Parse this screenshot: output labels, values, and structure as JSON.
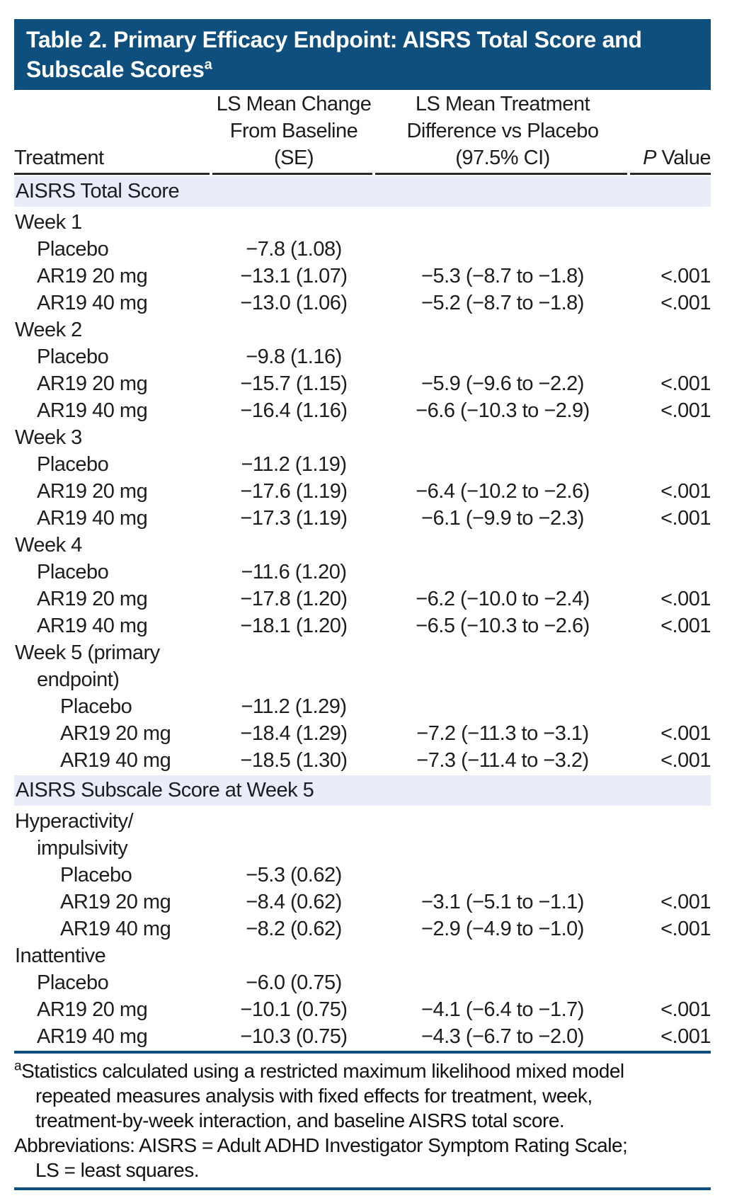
{
  "colors": {
    "title_band": "#0f4f7d",
    "section_band": "#e8edf9",
    "header_rule": "#2a2a2a",
    "blue_rule": "#0f4f7d"
  },
  "table": {
    "title": {
      "line1": "Table 2. Primary Efficacy Endpoint: AISRS Total Score and",
      "line2": "Subscale Scores",
      "superscript": "a"
    },
    "header": {
      "col1": "Treatment",
      "col2_line1": "LS Mean Change",
      "col2_line2": "From Baseline (SE)",
      "col3_line1": "LS Mean Treatment",
      "col3_line2": "Difference vs Placebo",
      "col3_line3": "(97.5% CI)",
      "col4_italic": "P",
      "col4_rest": " Value"
    },
    "rows": [
      {
        "type": "band",
        "label": "AISRS Total Score"
      },
      {
        "type": "group",
        "label": "Week 1"
      },
      {
        "type": "data",
        "indent": 1,
        "label": "Placebo",
        "change": "−7.8 (1.08)",
        "diff": "",
        "p": ""
      },
      {
        "type": "data",
        "indent": 1,
        "label": "AR19 20 mg",
        "change": "−13.1 (1.07)",
        "diff": "−5.3 (−8.7 to −1.8)",
        "p": "<.001"
      },
      {
        "type": "data",
        "indent": 1,
        "label": "AR19 40 mg",
        "change": "−13.0 (1.06)",
        "diff": "−5.2 (−8.7 to −1.8)",
        "p": "<.001"
      },
      {
        "type": "group",
        "label": "Week 2"
      },
      {
        "type": "data",
        "indent": 1,
        "label": "Placebo",
        "change": "−9.8 (1.16)",
        "diff": "",
        "p": ""
      },
      {
        "type": "data",
        "indent": 1,
        "label": "AR19 20 mg",
        "change": "−15.7 (1.15)",
        "diff": "−5.9 (−9.6 to −2.2)",
        "p": "<.001"
      },
      {
        "type": "data",
        "indent": 1,
        "label": "AR19 40 mg",
        "change": "−16.4 (1.16)",
        "diff": "−6.6 (−10.3 to −2.9)",
        "p": "<.001"
      },
      {
        "type": "group",
        "label": "Week 3"
      },
      {
        "type": "data",
        "indent": 1,
        "label": "Placebo",
        "change": "−11.2 (1.19)",
        "diff": "",
        "p": ""
      },
      {
        "type": "data",
        "indent": 1,
        "label": "AR19 20 mg",
        "change": "−17.6 (1.19)",
        "diff": "−6.4 (−10.2 to −2.6)",
        "p": "<.001"
      },
      {
        "type": "data",
        "indent": 1,
        "label": "AR19 40 mg",
        "change": "−17.3 (1.19)",
        "diff": "−6.1 (−9.9 to −2.3)",
        "p": "<.001"
      },
      {
        "type": "group",
        "label": "Week 4"
      },
      {
        "type": "data",
        "indent": 1,
        "label": "Placebo",
        "change": "−11.6 (1.20)",
        "diff": "",
        "p": ""
      },
      {
        "type": "data",
        "indent": 1,
        "label": "AR19 20 mg",
        "change": "−17.8 (1.20)",
        "diff": "−6.2 (−10.0 to −2.4)",
        "p": "<.001"
      },
      {
        "type": "data",
        "indent": 1,
        "label": "AR19 40 mg",
        "change": "−18.1 (1.20)",
        "diff": "−6.5 (−10.3 to −2.6)",
        "p": "<.001"
      },
      {
        "type": "group2",
        "label_line1": "Week 5 (primary",
        "label_line2": "endpoint)"
      },
      {
        "type": "data",
        "indent": 2,
        "label": "Placebo",
        "change": "−11.2 (1.29)",
        "diff": "",
        "p": ""
      },
      {
        "type": "data",
        "indent": 2,
        "label": "AR19 20 mg",
        "change": "−18.4 (1.29)",
        "diff": "−7.2 (−11.3 to −3.1)",
        "p": "<.001"
      },
      {
        "type": "data",
        "indent": 2,
        "label": "AR19 40 mg",
        "change": "−18.5 (1.30)",
        "diff": "−7.3 (−11.4 to −3.2)",
        "p": "<.001"
      },
      {
        "type": "band",
        "label": "AISRS Subscale Score at Week 5"
      },
      {
        "type": "group2",
        "label_line1": "Hyperactivity/",
        "label_line2": "impulsivity"
      },
      {
        "type": "data",
        "indent": 2,
        "label": "Placebo",
        "change": "−5.3 (0.62)",
        "diff": "",
        "p": ""
      },
      {
        "type": "data",
        "indent": 2,
        "label": "AR19 20 mg",
        "change": "−8.4 (0.62)",
        "diff": "−3.1 (−5.1 to −1.1)",
        "p": "<.001"
      },
      {
        "type": "data",
        "indent": 2,
        "label": "AR19 40 mg",
        "change": "−8.2 (0.62)",
        "diff": "−2.9 (−4.9 to −1.0)",
        "p": "<.001"
      },
      {
        "type": "group",
        "label": "Inattentive"
      },
      {
        "type": "data",
        "indent": 1,
        "label": "Placebo",
        "change": "−6.0 (0.75)",
        "diff": "",
        "p": ""
      },
      {
        "type": "data",
        "indent": 1,
        "label": "AR19 20 mg",
        "change": "−10.1 (0.75)",
        "diff": "−4.1 (−6.4 to −1.7)",
        "p": "<.001"
      },
      {
        "type": "data",
        "indent": 1,
        "label": "AR19 40 mg",
        "change": "−10.3 (0.75)",
        "diff": "−4.3 (−6.7 to −2.0)",
        "p": "<.001"
      }
    ],
    "footnotes": {
      "fn1_sup": "a",
      "fn1_lines": [
        "Statistics calculated using a restricted maximum likelihood mixed model",
        "repeated measures analysis with fixed effects for treatment, week,",
        "treatment-by-week interaction, and baseline AISRS total score."
      ],
      "fn2_lines": [
        "Abbreviations: AISRS = Adult ADHD Investigator Symptom Rating Scale;",
        "LS = least squares."
      ]
    }
  }
}
